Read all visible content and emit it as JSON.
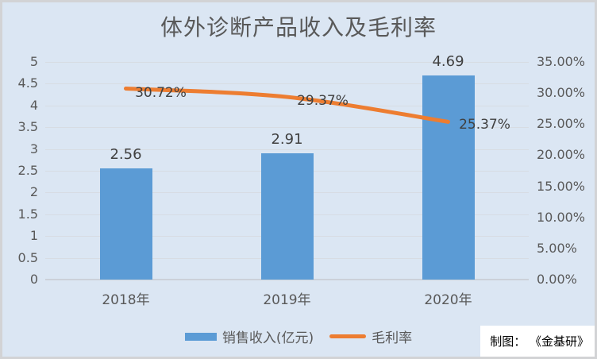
{
  "chart_data": {
    "type": "combo",
    "title": "体外诊断产品收入及毛利率",
    "categories": [
      "2018年",
      "2019年",
      "2020年"
    ],
    "series": [
      {
        "name": "销售收入(亿元)",
        "type": "bar",
        "axis": "left",
        "values": [
          2.56,
          2.91,
          4.69
        ],
        "labels": [
          "2.56",
          "2.91",
          "4.69"
        ],
        "color": "#5b9bd5"
      },
      {
        "name": "毛利率",
        "type": "line",
        "axis": "right",
        "values": [
          30.72,
          29.37,
          25.37
        ],
        "labels": [
          "30.72%",
          "29.37%",
          "25.37%"
        ],
        "color": "#ed7d31"
      }
    ],
    "axes": {
      "left": {
        "min": 0,
        "max": 5,
        "ticks": [
          "5",
          "4.5",
          "4",
          "3.5",
          "3",
          "2.5",
          "2",
          "1.5",
          "1",
          "0.5",
          "0"
        ]
      },
      "right": {
        "min": 0,
        "max": 35,
        "ticks": [
          "35.00%",
          "30.00%",
          "25.00%",
          "20.00%",
          "15.00%",
          "10.00%",
          "5.00%",
          "0.00%"
        ]
      }
    },
    "grid": true,
    "legend_position": "bottom"
  },
  "credit": {
    "text": "制图： 《金基研》"
  },
  "colors": {
    "background": "#dbe6f3",
    "frame_border": "#d2d3d5",
    "bar": "#5b9bd5",
    "line": "#ed7d31",
    "gridline": "#d7dce3",
    "axis_line": "#ccd1d9",
    "axis_text": "#595959",
    "data_label_text": "#404040",
    "credit_text": "#000000",
    "credit_background": "#ffffff"
  }
}
